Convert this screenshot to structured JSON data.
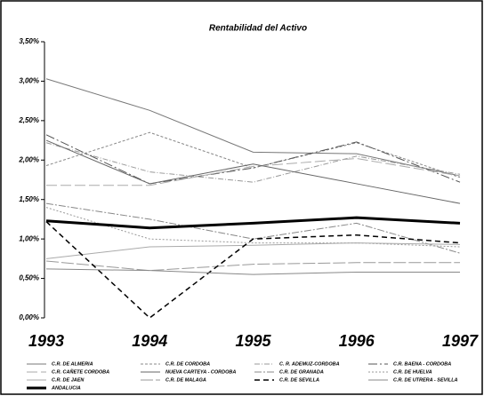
{
  "chart_data": {
    "type": "line",
    "title": "Rentabilidad del Activo",
    "categories": [
      "1993",
      "1994",
      "1995",
      "1996",
      "1997"
    ],
    "ylim": [
      0,
      3.5
    ],
    "yticks": [
      {
        "value": 0,
        "label": "0,00%"
      },
      {
        "value": 0.5,
        "label": "0,50%"
      },
      {
        "value": 1,
        "label": "1,00%"
      },
      {
        "value": 1.5,
        "label": "1,50%"
      },
      {
        "value": 2,
        "label": "2,00%"
      },
      {
        "value": 2.5,
        "label": "2,50%"
      },
      {
        "value": 3,
        "label": "3,00%"
      },
      {
        "value": 3.5,
        "label": "3,50%"
      }
    ],
    "series": [
      {
        "name": "C.R. DE ALMERIA",
        "color": "#777777",
        "dash": "",
        "width": 1,
        "values": [
          3.03,
          2.63,
          2.1,
          2.08,
          1.8
        ]
      },
      {
        "name": "C.R. DE CORDOBA",
        "color": "#888888",
        "dash": "3 2",
        "width": 1,
        "values": [
          1.93,
          2.35,
          1.9,
          2.22,
          1.78
        ]
      },
      {
        "name": "C. R. ADEMUZ-CORDOBA",
        "color": "#999999",
        "dash": "6 2 1 2",
        "width": 1,
        "values": [
          2.22,
          1.85,
          1.72,
          2.05,
          1.82
        ]
      },
      {
        "name": "C.R. BAENA - CORDOBA",
        "color": "#555555",
        "dash": "10 3 2 3",
        "width": 1,
        "values": [
          2.32,
          1.7,
          1.9,
          2.23,
          1.72
        ]
      },
      {
        "name": "C.R. CAÑETE CORDOBA",
        "color": "#aaaaaa",
        "dash": "12 4",
        "width": 1,
        "values": [
          1.68,
          1.68,
          1.92,
          2.02,
          1.8
        ]
      },
      {
        "name": "NUEVA CARTEYA - CORDOBA",
        "color": "#666666",
        "dash": "",
        "width": 1,
        "values": [
          2.25,
          1.7,
          1.95,
          1.7,
          1.45
        ]
      },
      {
        "name": "C.R. DE GRANADA",
        "color": "#888888",
        "dash": "8 2 2 2",
        "width": 1,
        "values": [
          1.45,
          1.25,
          1.0,
          1.2,
          0.82
        ]
      },
      {
        "name": "C.R. DE HUELVA",
        "color": "#999999",
        "dash": "2 2",
        "width": 1,
        "values": [
          1.4,
          1.0,
          0.95,
          0.95,
          0.9
        ]
      },
      {
        "name": "C.R. DE JAEN",
        "color": "#aaaaaa",
        "dash": "",
        "width": 1,
        "values": [
          0.75,
          0.9,
          0.92,
          0.95,
          0.93
        ]
      },
      {
        "name": "C.R. DE MALAGA",
        "color": "#999999",
        "dash": "14 3",
        "width": 1,
        "values": [
          0.72,
          0.6,
          0.68,
          0.7,
          0.7
        ]
      },
      {
        "name": "C.R. DE SEVILLA",
        "color": "#000000",
        "dash": "6 4",
        "width": 1.5,
        "values": [
          1.22,
          0,
          1.0,
          1.05,
          0.95
        ]
      },
      {
        "name": "C.R. DE UTRERA - SEVILLA",
        "color": "#888888",
        "dash": "",
        "width": 1,
        "values": [
          0.62,
          0.6,
          0.55,
          0.58,
          0.58
        ]
      },
      {
        "name": "ANDALUCIA",
        "color": "#000000",
        "dash": "",
        "width": 3,
        "values": [
          1.23,
          1.14,
          1.2,
          1.27,
          1.2
        ]
      }
    ]
  }
}
